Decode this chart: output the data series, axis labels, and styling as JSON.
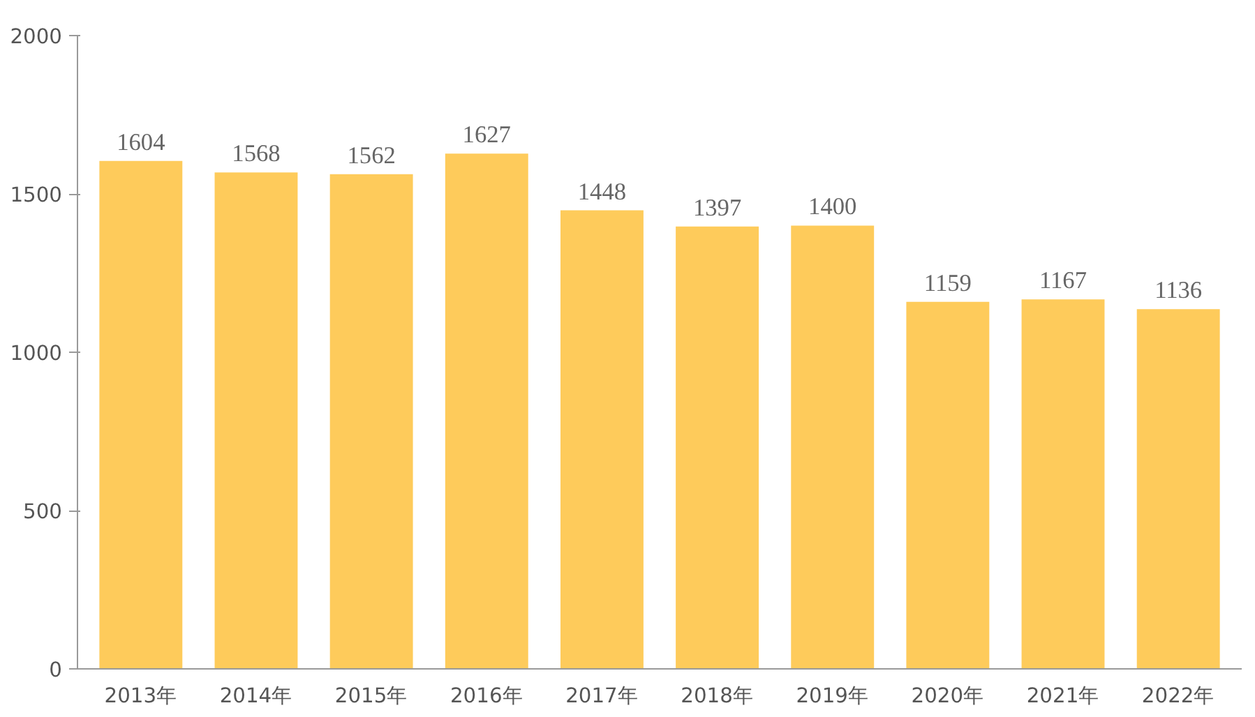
{
  "chart_data": {
    "type": "bar",
    "categories": [
      "2013年",
      "2014年",
      "2015年",
      "2016年",
      "2017年",
      "2018年",
      "2019年",
      "2020年",
      "2021年",
      "2022年"
    ],
    "values": [
      1604,
      1568,
      1562,
      1627,
      1448,
      1397,
      1400,
      1159,
      1167,
      1136
    ],
    "color": "#fecb5b",
    "ylim": [
      0,
      2000
    ],
    "yticks": [
      0,
      500,
      1000,
      1500,
      2000
    ],
    "data_labels": true
  }
}
